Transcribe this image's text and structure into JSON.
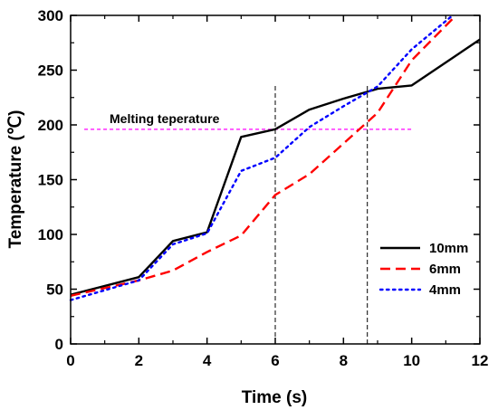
{
  "chart_data": {
    "type": "line",
    "xlabel": "Time (s)",
    "ylabel": "Temperature (℃)",
    "xlim": [
      0,
      12
    ],
    "ylim": [
      0,
      300
    ],
    "xticks": [
      0,
      2,
      4,
      6,
      8,
      10,
      12
    ],
    "yticks": [
      0,
      50,
      100,
      150,
      200,
      250,
      300
    ],
    "grid": false,
    "legend_position": "right",
    "series": [
      {
        "name": "10mm",
        "color": "#000000",
        "style": "solid",
        "x": [
          0,
          2,
          3,
          4,
          5,
          6,
          7,
          8,
          9,
          10,
          12
        ],
        "y": [
          45,
          61,
          94,
          102,
          189,
          196,
          214,
          224,
          233,
          236,
          278
        ]
      },
      {
        "name": "6mm",
        "color": "#ff0000",
        "style": "dashed",
        "x": [
          0,
          2,
          3,
          4,
          5,
          6,
          7,
          8,
          9,
          10,
          11.3
        ],
        "y": [
          44,
          58,
          67,
          84,
          99,
          136,
          155,
          183,
          211,
          259,
          300
        ]
      },
      {
        "name": "4mm",
        "color": "#0000ff",
        "style": "dotted",
        "x": [
          0,
          2,
          3,
          4,
          5,
          6,
          7,
          8,
          9,
          10,
          11.2
        ],
        "y": [
          40,
          58,
          91,
          101,
          158,
          170,
          198,
          217,
          235,
          269,
          300
        ]
      }
    ],
    "annotations": {
      "melting_label": "Melting teperature",
      "melting_temperature": 196,
      "melting_color": "#ff00ff",
      "melting_line_x_start": 0.4,
      "melting_line_x_end": 10,
      "vertical_markers": [
        6,
        8.7
      ],
      "vertical_marker_color": "#000000"
    }
  }
}
